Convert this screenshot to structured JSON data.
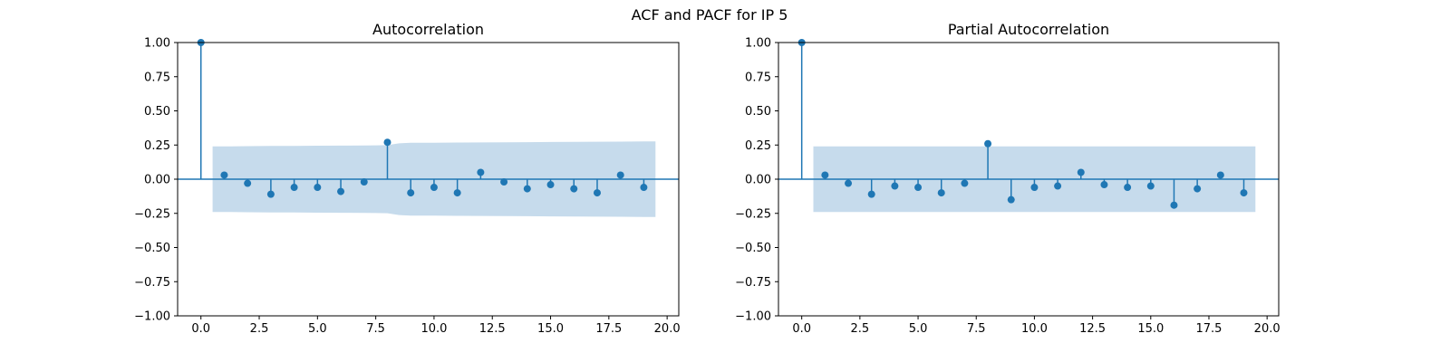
{
  "figure": {
    "suptitle": "ACF and PACF for IP 5"
  },
  "colors": {
    "stem": "#1f77b4",
    "band": "#c6dbec",
    "axes": "#000000"
  },
  "chart_data": [
    {
      "type": "stem",
      "title": "Autocorrelation",
      "xlim": [
        -1,
        20.5
      ],
      "ylim": [
        -1.0,
        1.0
      ],
      "xticks": [
        0.0,
        2.5,
        5.0,
        7.5,
        10.0,
        12.5,
        15.0,
        17.5,
        20.0
      ],
      "xtick_labels": [
        "0.0",
        "2.5",
        "5.0",
        "7.5",
        "10.0",
        "12.5",
        "15.0",
        "17.5",
        "20.0"
      ],
      "yticks": [
        -1.0,
        -0.75,
        -0.5,
        -0.25,
        0.0,
        0.25,
        0.5,
        0.75,
        1.0
      ],
      "ytick_labels": [
        "−1.00",
        "−0.75",
        "−0.50",
        "−0.25",
        "0.00",
        "0.25",
        "0.50",
        "0.75",
        "1.00"
      ],
      "lags": [
        0,
        1,
        2,
        3,
        4,
        5,
        6,
        7,
        8,
        9,
        10,
        11,
        12,
        13,
        14,
        15,
        16,
        17,
        18,
        19
      ],
      "values": [
        1.0,
        0.03,
        -0.03,
        -0.11,
        -0.06,
        -0.06,
        -0.09,
        -0.02,
        0.27,
        -0.1,
        -0.06,
        -0.1,
        0.05,
        -0.02,
        -0.07,
        -0.04,
        -0.07,
        -0.1,
        0.03,
        -0.06
      ],
      "confint_x": [
        0.5,
        1,
        2,
        3,
        4,
        5,
        6,
        7,
        7.5,
        8,
        8.5,
        9,
        10,
        11,
        12,
        13,
        14,
        15,
        16,
        17,
        18,
        19,
        19.5
      ],
      "confint_upper": [
        0.24,
        0.24,
        0.242,
        0.243,
        0.244,
        0.245,
        0.246,
        0.247,
        0.248,
        0.249,
        0.262,
        0.266,
        0.267,
        0.268,
        0.269,
        0.27,
        0.271,
        0.272,
        0.273,
        0.274,
        0.275,
        0.276,
        0.276
      ]
    },
    {
      "type": "stem",
      "title": "Partial Autocorrelation",
      "xlim": [
        -1,
        20.5
      ],
      "ylim": [
        -1.0,
        1.0
      ],
      "xticks": [
        0.0,
        2.5,
        5.0,
        7.5,
        10.0,
        12.5,
        15.0,
        17.5,
        20.0
      ],
      "xtick_labels": [
        "0.0",
        "2.5",
        "5.0",
        "7.5",
        "10.0",
        "12.5",
        "15.0",
        "17.5",
        "20.0"
      ],
      "yticks": [
        -1.0,
        -0.75,
        -0.5,
        -0.25,
        0.0,
        0.25,
        0.5,
        0.75,
        1.0
      ],
      "ytick_labels": [
        "−1.00",
        "−0.75",
        "−0.50",
        "−0.25",
        "0.00",
        "0.25",
        "0.50",
        "0.75",
        "1.00"
      ],
      "lags": [
        0,
        1,
        2,
        3,
        4,
        5,
        6,
        7,
        8,
        9,
        10,
        11,
        12,
        13,
        14,
        15,
        16,
        17,
        18,
        19
      ],
      "values": [
        1.0,
        0.03,
        -0.03,
        -0.11,
        -0.05,
        -0.06,
        -0.1,
        -0.03,
        0.26,
        -0.15,
        -0.06,
        -0.05,
        0.05,
        -0.04,
        -0.06,
        -0.05,
        -0.19,
        -0.07,
        0.03,
        -0.1
      ],
      "confint_x": [
        0.5,
        19.5
      ],
      "confint_upper": [
        0.24,
        0.24
      ]
    }
  ]
}
